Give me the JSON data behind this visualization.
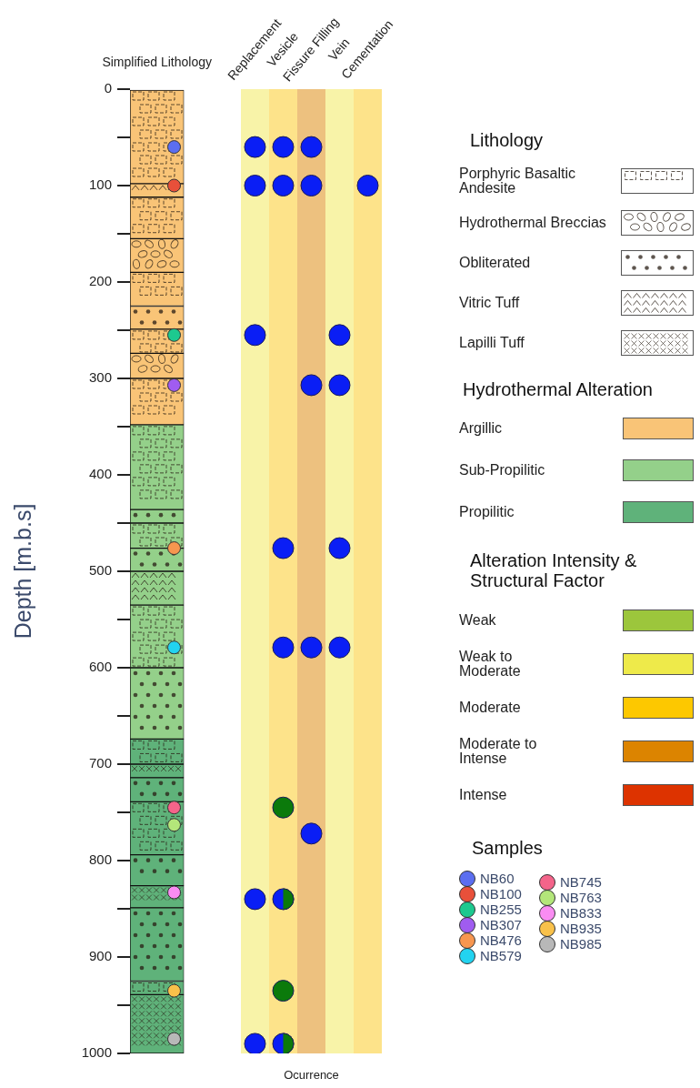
{
  "chart_data": [
    {
      "type": "bar",
      "ylabel": "Depth [m.b.s]",
      "legend_title": "Lithology",
      "categories": [
        "Simplified Lithology"
      ],
      "ylim": [
        1000,
        0
      ],
      "yticks": [
        0,
        {
          "value": 50,
          "label": null
        },
        100,
        {
          "value": 150,
          "label": null
        },
        200,
        {
          "value": 250,
          "label": null
        },
        300,
        {
          "value": 350,
          "label": null
        },
        400,
        {
          "value": 450,
          "label": null
        },
        500,
        {
          "value": 550,
          "label": null
        },
        600,
        {
          "value": 650,
          "label": null
        },
        700,
        {
          "value": 750,
          "label": null
        },
        800,
        {
          "value": 850,
          "label": null
        },
        900,
        {
          "value": 950,
          "label": null
        },
        1000
      ],
      "series": [
        {
          "name": "Porphyric Basaltic Andesite",
          "color": "#f9c477",
          "values": [
            98
          ],
          "base": [
            0
          ]
        },
        {
          "color": "#f9c477",
          "values": [
            43
          ],
          "base": [
            112
          ]
        },
        {
          "color": "#f9c477",
          "values": [
            35
          ],
          "base": [
            190
          ]
        },
        {
          "color": "#f9c477",
          "values": [
            25
          ],
          "base": [
            249
          ]
        },
        {
          "color": "#f9c477",
          "values": [
            48
          ],
          "base": [
            300
          ]
        },
        {
          "color": "#94d08a",
          "values": [
            88
          ],
          "base": [
            348
          ]
        },
        {
          "color": "#94d08a",
          "values": [
            26
          ],
          "base": [
            450
          ]
        },
        {
          "color": "#94d08a",
          "values": [
            65
          ],
          "base": [
            535
          ]
        },
        {
          "color": "#5fb27a",
          "values": [
            26
          ],
          "base": [
            674
          ]
        },
        {
          "color": "#5fb27a",
          "values": [
            55
          ],
          "base": [
            739
          ]
        },
        {
          "color": "#5fb27a",
          "values": [
            14
          ],
          "base": [
            925
          ]
        },
        {
          "name": "Hydrothermal Breccias",
          "color": "#f9c477",
          "values": [
            35
          ],
          "base": [
            155
          ]
        },
        {
          "color": "#f9c477",
          "values": [
            26
          ],
          "base": [
            274
          ]
        },
        {
          "name": "Obliterated",
          "color": "#f9c477",
          "values": [
            24
          ],
          "base": [
            225
          ]
        },
        {
          "color": "#94d08a",
          "values": [
            14
          ],
          "base": [
            436
          ]
        },
        {
          "color": "#94d08a",
          "values": [
            24
          ],
          "base": [
            476
          ]
        },
        {
          "color": "#94d08a",
          "values": [
            74
          ],
          "base": [
            600
          ]
        },
        {
          "color": "#5fb27a",
          "values": [
            25
          ],
          "base": [
            714
          ]
        },
        {
          "color": "#5fb27a",
          "values": [
            32
          ],
          "base": [
            794
          ]
        },
        {
          "color": "#5fb27a",
          "values": [
            76
          ],
          "base": [
            849
          ]
        },
        {
          "name": "Vitric Tuff",
          "color": "#f9c477",
          "values": [
            14
          ],
          "base": [
            98
          ]
        },
        {
          "color": "#94d08a",
          "values": [
            35
          ],
          "base": [
            500
          ]
        },
        {
          "name": "Lapilli Tuff",
          "color": "#5fb27a",
          "values": [
            14
          ],
          "base": [
            700
          ]
        },
        {
          "color": "#5fb27a",
          "values": [
            23
          ],
          "base": [
            826
          ]
        },
        {
          "color": "#5fb27a",
          "values": [
            61
          ],
          "base": [
            939
          ]
        },
        {
          "type": "scatter",
          "name": "NB60",
          "color": "#5b6ef0",
          "values": [
            60
          ]
        },
        {
          "type": "scatter",
          "name": "NB100",
          "color": "#e8503a",
          "values": [
            100
          ]
        },
        {
          "type": "scatter",
          "name": "NB255",
          "color": "#1dc98f",
          "values": [
            255
          ]
        },
        {
          "type": "scatter",
          "name": "NB307",
          "color": "#a05cf0",
          "values": [
            307
          ]
        },
        {
          "type": "scatter",
          "name": "NB476",
          "color": "#f7964f",
          "values": [
            476
          ]
        },
        {
          "type": "scatter",
          "name": "NB579",
          "color": "#22d3f0",
          "values": [
            579
          ]
        },
        {
          "type": "scatter",
          "name": "NB745",
          "color": "#f4648a",
          "values": [
            745
          ]
        },
        {
          "type": "scatter",
          "name": "NB763",
          "color": "#b3e67a",
          "values": [
            763
          ]
        },
        {
          "type": "scatter",
          "name": "NB833",
          "color": "#f98cf2",
          "values": [
            833
          ]
        },
        {
          "type": "scatter",
          "name": "NB935",
          "color": "#f9c14a",
          "values": [
            935
          ]
        },
        {
          "type": "scatter",
          "name": "NB985",
          "color": "#b8b8b8",
          "values": [
            985
          ]
        }
      ]
    },
    {
      "type": "scatter",
      "xlabel": "Ocurrence",
      "tick_labels": "x",
      "categories": [
        "Replacement",
        "Vesicle",
        "Fissure Filling",
        "Vein",
        "Cementation"
      ],
      "ylim": [
        1000,
        0
      ],
      "bands": [
        {
          "axis": "x",
          "from": "Replacement",
          "to": "Replacement",
          "color": "#f8f3a8"
        },
        {
          "axis": "x",
          "from": "Vesicle",
          "to": "Vesicle",
          "color": "#fde38a"
        },
        {
          "axis": "x",
          "from": "Fissure Filling",
          "to": "Fissure Filling",
          "color": "#edc17f"
        },
        {
          "axis": "x",
          "from": "Vein",
          "to": "Vein",
          "color": "#f8f3a8"
        },
        {
          "axis": "x",
          "from": "Cementation",
          "to": "Cementation",
          "color": "#fde38a"
        }
      ],
      "series": [
        {
          "color": "#0a1ef5",
          "x": [
            "Replacement",
            "Vesicle",
            "Fissure Filling",
            "Replacement",
            "Vesicle",
            "Fissure Filling",
            "Cementation",
            "Replacement",
            "Vein",
            "Fissure Filling",
            "Vein",
            "Vesicle",
            "Vein",
            "Vesicle",
            "Fissure Filling",
            "Vein",
            "Fissure Filling",
            "Replacement",
            "Vesicle",
            "Replacement",
            "Vesicle"
          ],
          "values": [
            60,
            60,
            60,
            100,
            100,
            100,
            100,
            255,
            255,
            307,
            307,
            476,
            476,
            579,
            579,
            579,
            772,
            840,
            840,
            990,
            990
          ]
        },
        {
          "color": "#0b7a0b",
          "x": [
            "Vesicle",
            "Vesicle",
            "Vesicle",
            "Vesicle"
          ],
          "values": [
            745,
            840,
            935,
            990
          ]
        }
      ]
    },
    {
      "type": "other",
      "annotations": [
        "Hydrothermal Alteration",
        "Argillic",
        "Sub-Propilitic",
        "Propilitic",
        "Alteration Intensity & Structural Factor",
        "Weak",
        "Weak to Moderate",
        "Moderate",
        "Moderate to Intense",
        "Intense",
        "Samples"
      ]
    }
  ]
}
